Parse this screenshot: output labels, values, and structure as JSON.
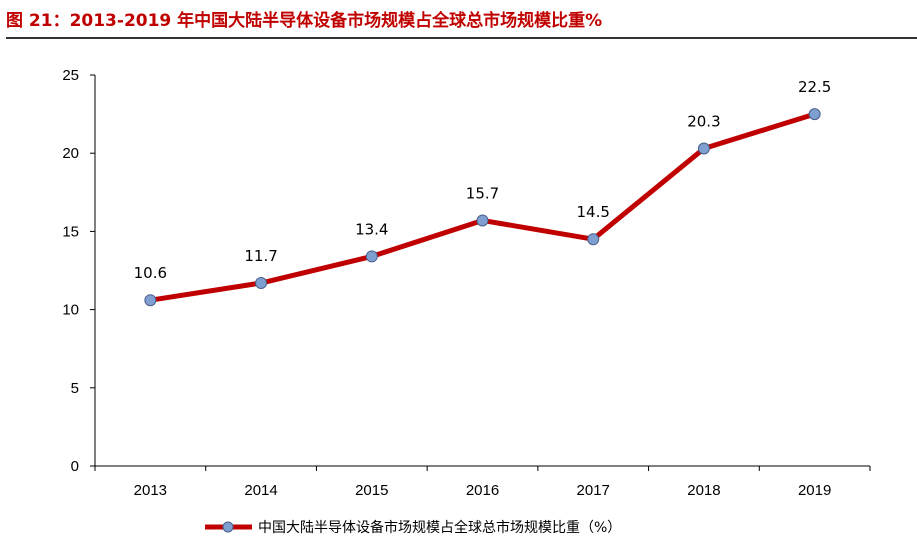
{
  "title": "图 21：2013-2019 年中国大陆半导体设备市场规模占全球总市场规模比重%",
  "colors": {
    "title": "#c00000",
    "line": "#c00000",
    "marker_fill": "#7f9fd1",
    "marker_stroke": "#4a5f8a"
  },
  "chart_data": {
    "type": "line",
    "categories": [
      "2013",
      "2014",
      "2015",
      "2016",
      "2017",
      "2018",
      "2019"
    ],
    "series": [
      {
        "name": "中国大陆半导体设备市场规模占全球总市场规模比重（%）",
        "values": [
          10.6,
          11.7,
          13.4,
          15.7,
          14.5,
          20.3,
          22.5
        ]
      }
    ],
    "data_labels": [
      "10.6",
      "11.7",
      "13.4",
      "15.7",
      "14.5",
      "20.3",
      "22.5"
    ],
    "ylim": [
      0,
      25
    ],
    "yticks": [
      0,
      5,
      10,
      15,
      20,
      25
    ],
    "ytick_labels": [
      "0",
      "5",
      "10",
      "15",
      "20",
      "25"
    ],
    "grid": false,
    "legend_position": "bottom"
  }
}
